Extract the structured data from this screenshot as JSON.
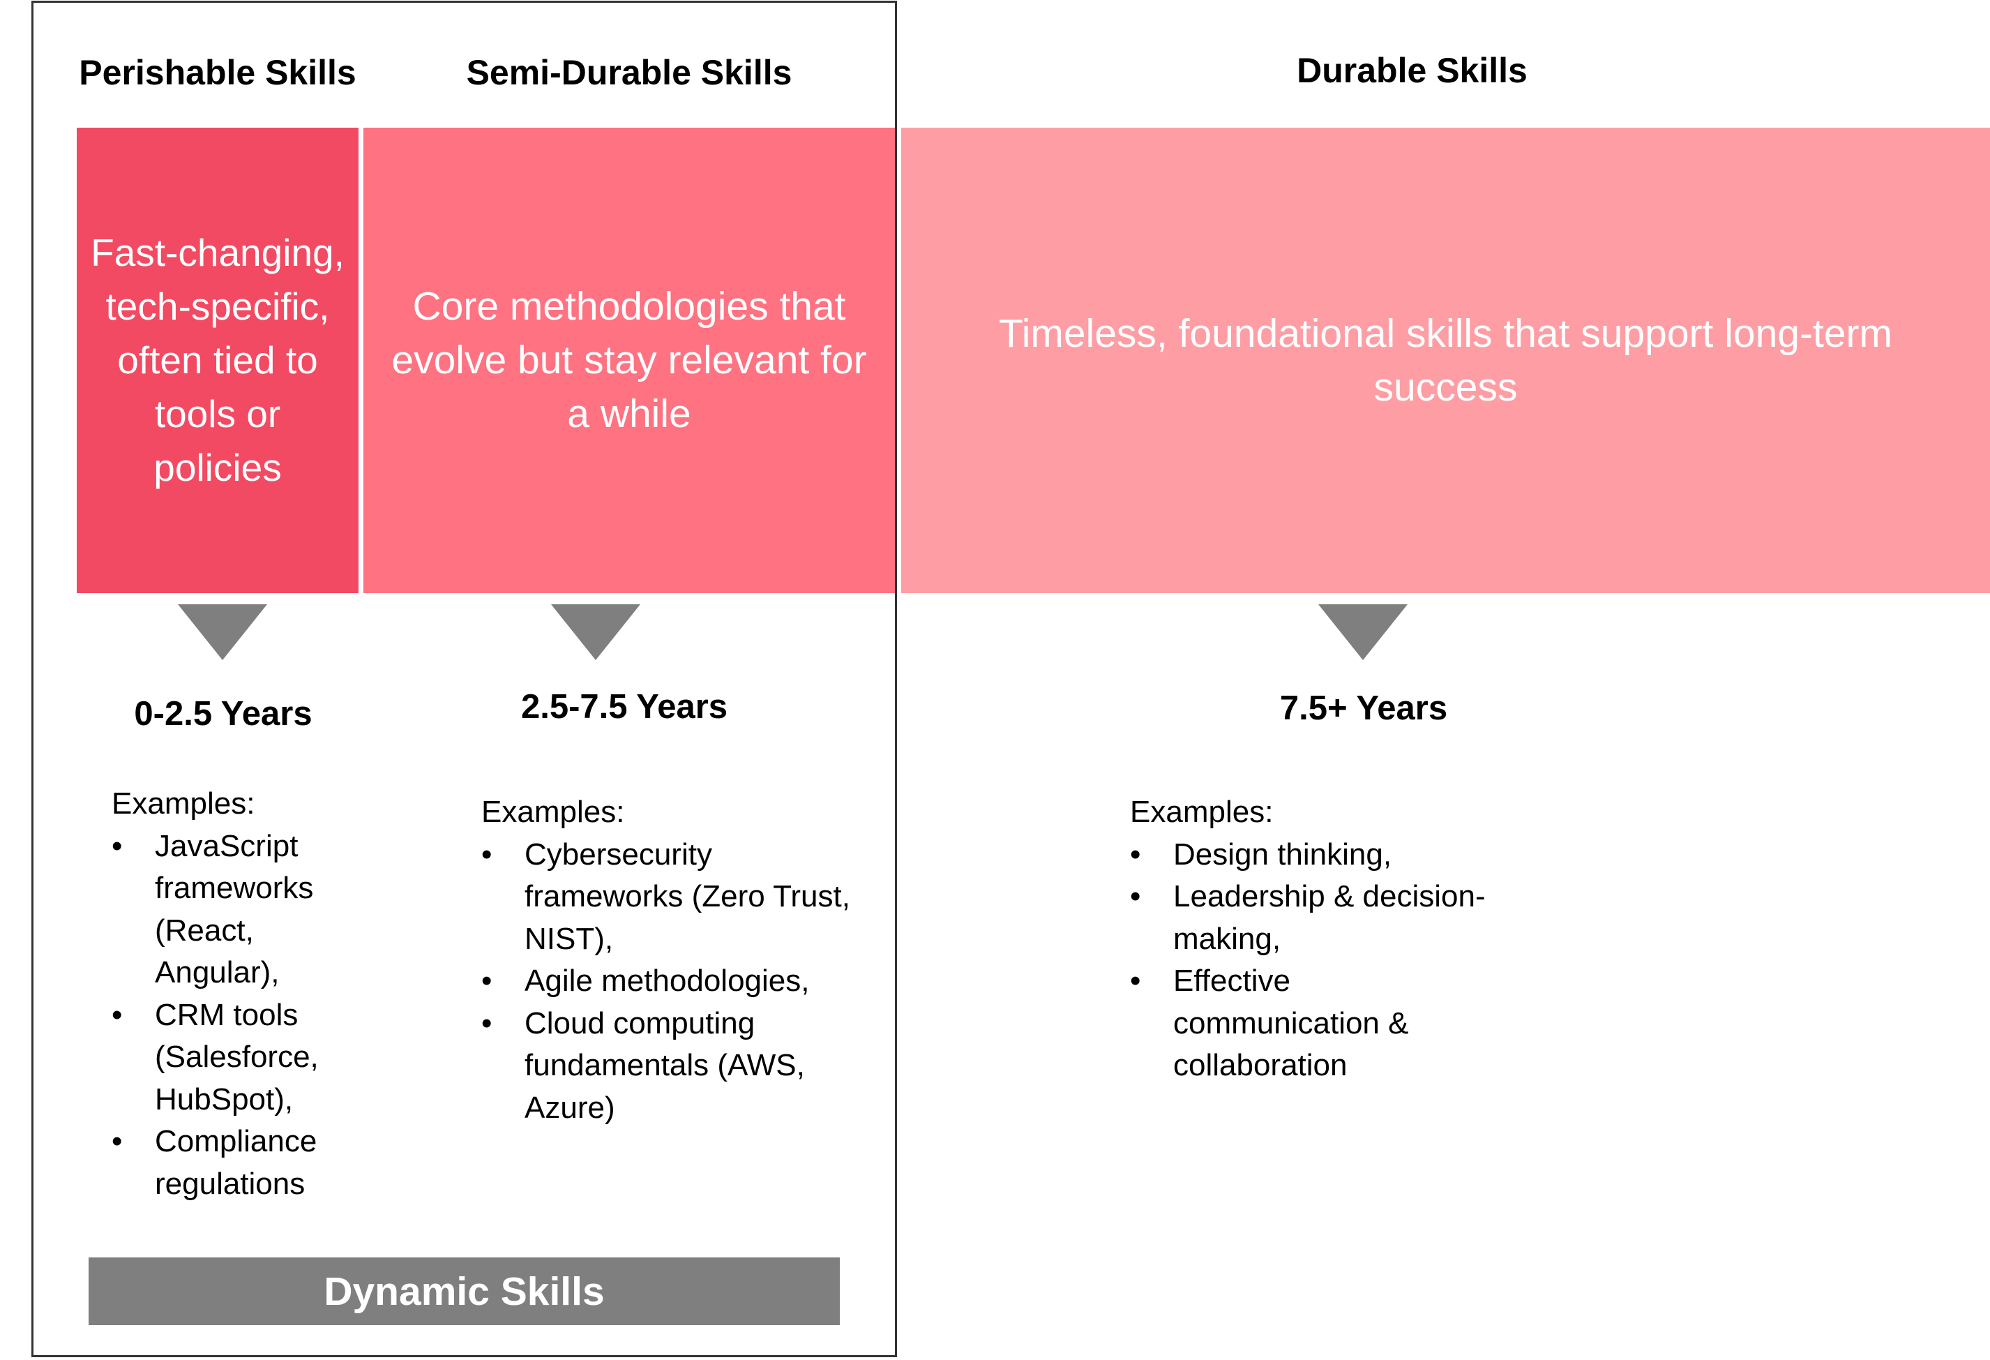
{
  "columns": {
    "perishable": {
      "heading": "Perishable Skills",
      "description": "Fast-changing, tech-specific, often tied to tools or policies",
      "years": "0-2.5 Years",
      "examples_label": "Examples:",
      "examples": [
        "JavaScript frameworks (React, Angular),",
        "CRM tools (Salesforce, HubSpot),",
        "Compliance regulations"
      ]
    },
    "semi_durable": {
      "heading": "Semi-Durable Skills",
      "description": "Core methodologies that evolve but stay relevant for a while",
      "years": "2.5-7.5 Years",
      "examples_label": "Examples:",
      "examples": [
        "Cybersecurity frameworks (Zero Trust, NIST),",
        "Agile methodologies,",
        "Cloud computing fundamentals (AWS, Azure)"
      ]
    },
    "durable": {
      "heading": "Durable Skills",
      "description": "Timeless, foundational skills that support long-term success",
      "years": "7.5+ Years",
      "examples_label": "Examples:",
      "examples": [
        " Design thinking,",
        "Leadership & decision-making,",
        "Effective communication & collaboration"
      ]
    }
  },
  "dynamic_skills_label": "Dynamic Skills",
  "colors": {
    "perishable": "#f24a62",
    "semi_durable": "#fe7281",
    "durable": "#fe9ea4",
    "arrow": "#7f7f7f",
    "dynamic_bar": "#7f7f7f",
    "frame": "#333333"
  }
}
